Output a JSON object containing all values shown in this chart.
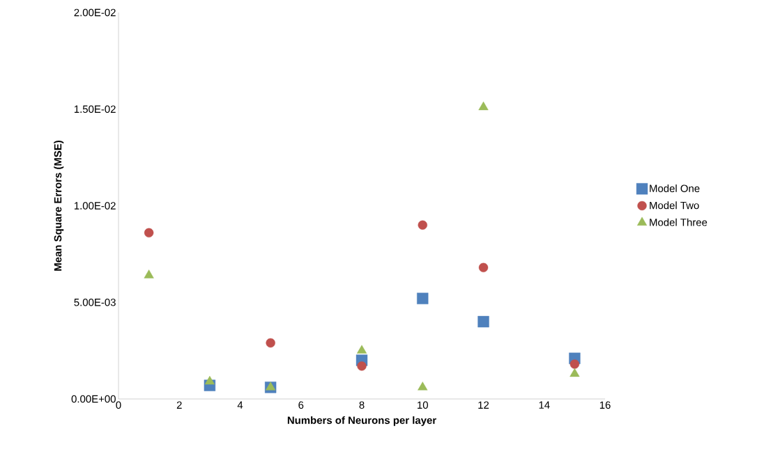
{
  "chart_data": {
    "type": "scatter",
    "xlabel": "Numbers of Neurons per layer",
    "ylabel": "Mean Square Errors (MSE)",
    "xlim": [
      0,
      16
    ],
    "xticks": [
      0,
      2,
      4,
      6,
      8,
      10,
      12,
      14,
      16
    ],
    "ylim": [
      0,
      0.02
    ],
    "yticks": [
      {
        "value": 0,
        "label": "0.00E+00"
      },
      {
        "value": 0.005,
        "label": "5.00E-03"
      },
      {
        "value": 0.01,
        "label": "1.00E-02"
      },
      {
        "value": 0.015,
        "label": "1.50E-02"
      },
      {
        "value": 0.02,
        "label": "2.00E-02"
      }
    ],
    "grid": false,
    "legend": "right",
    "series": [
      {
        "name": "Model One",
        "color": "#4f81bd",
        "marker": "square",
        "x": [
          3,
          5,
          8,
          10,
          12,
          15
        ],
        "values": [
          0.0007,
          0.0006,
          0.002,
          0.0052,
          0.004,
          0.0021
        ]
      },
      {
        "name": "Model Two",
        "color": "#c0504d",
        "marker": "circle",
        "x": [
          1,
          5,
          8,
          10,
          12,
          15
        ],
        "values": [
          0.0086,
          0.0029,
          0.0017,
          0.009,
          0.0068,
          0.0018
        ]
      },
      {
        "name": "Model Three",
        "color": "#9bbb59",
        "marker": "triangle",
        "x": [
          1,
          3,
          5,
          8,
          10,
          12,
          15
        ],
        "values": [
          0.0064,
          0.0009,
          0.0006,
          0.0025,
          0.0006,
          0.0151,
          0.0013
        ]
      }
    ]
  }
}
